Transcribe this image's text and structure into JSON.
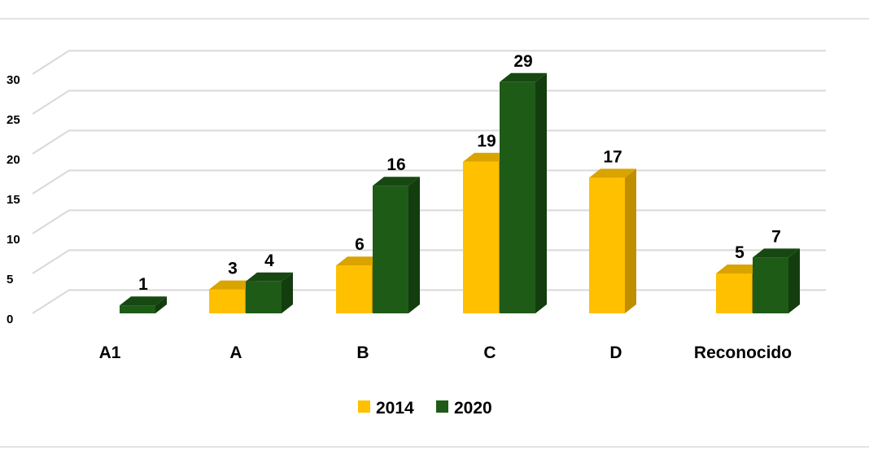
{
  "chart_data": {
    "type": "bar",
    "categories": [
      "A1",
      "A",
      "B",
      "C",
      "D",
      "Reconocido"
    ],
    "series": [
      {
        "name": "2014",
        "values": [
          null,
          3,
          6,
          19,
          17,
          5
        ],
        "color": "#FFC000",
        "side_color": "#BF8F00",
        "top_color": "#D9A300"
      },
      {
        "name": "2020",
        "values": [
          1,
          4,
          16,
          29,
          null,
          7
        ],
        "color": "#1E5B17",
        "side_color": "#133D0E",
        "top_color": "#174812"
      }
    ],
    "yticks": [
      0,
      5,
      10,
      15,
      20,
      25,
      30
    ],
    "ylim": [
      0,
      30
    ],
    "title": "",
    "xlabel": "",
    "ylabel": "",
    "legend_position": "bottom",
    "grid": true,
    "bar_style": "3d"
  }
}
